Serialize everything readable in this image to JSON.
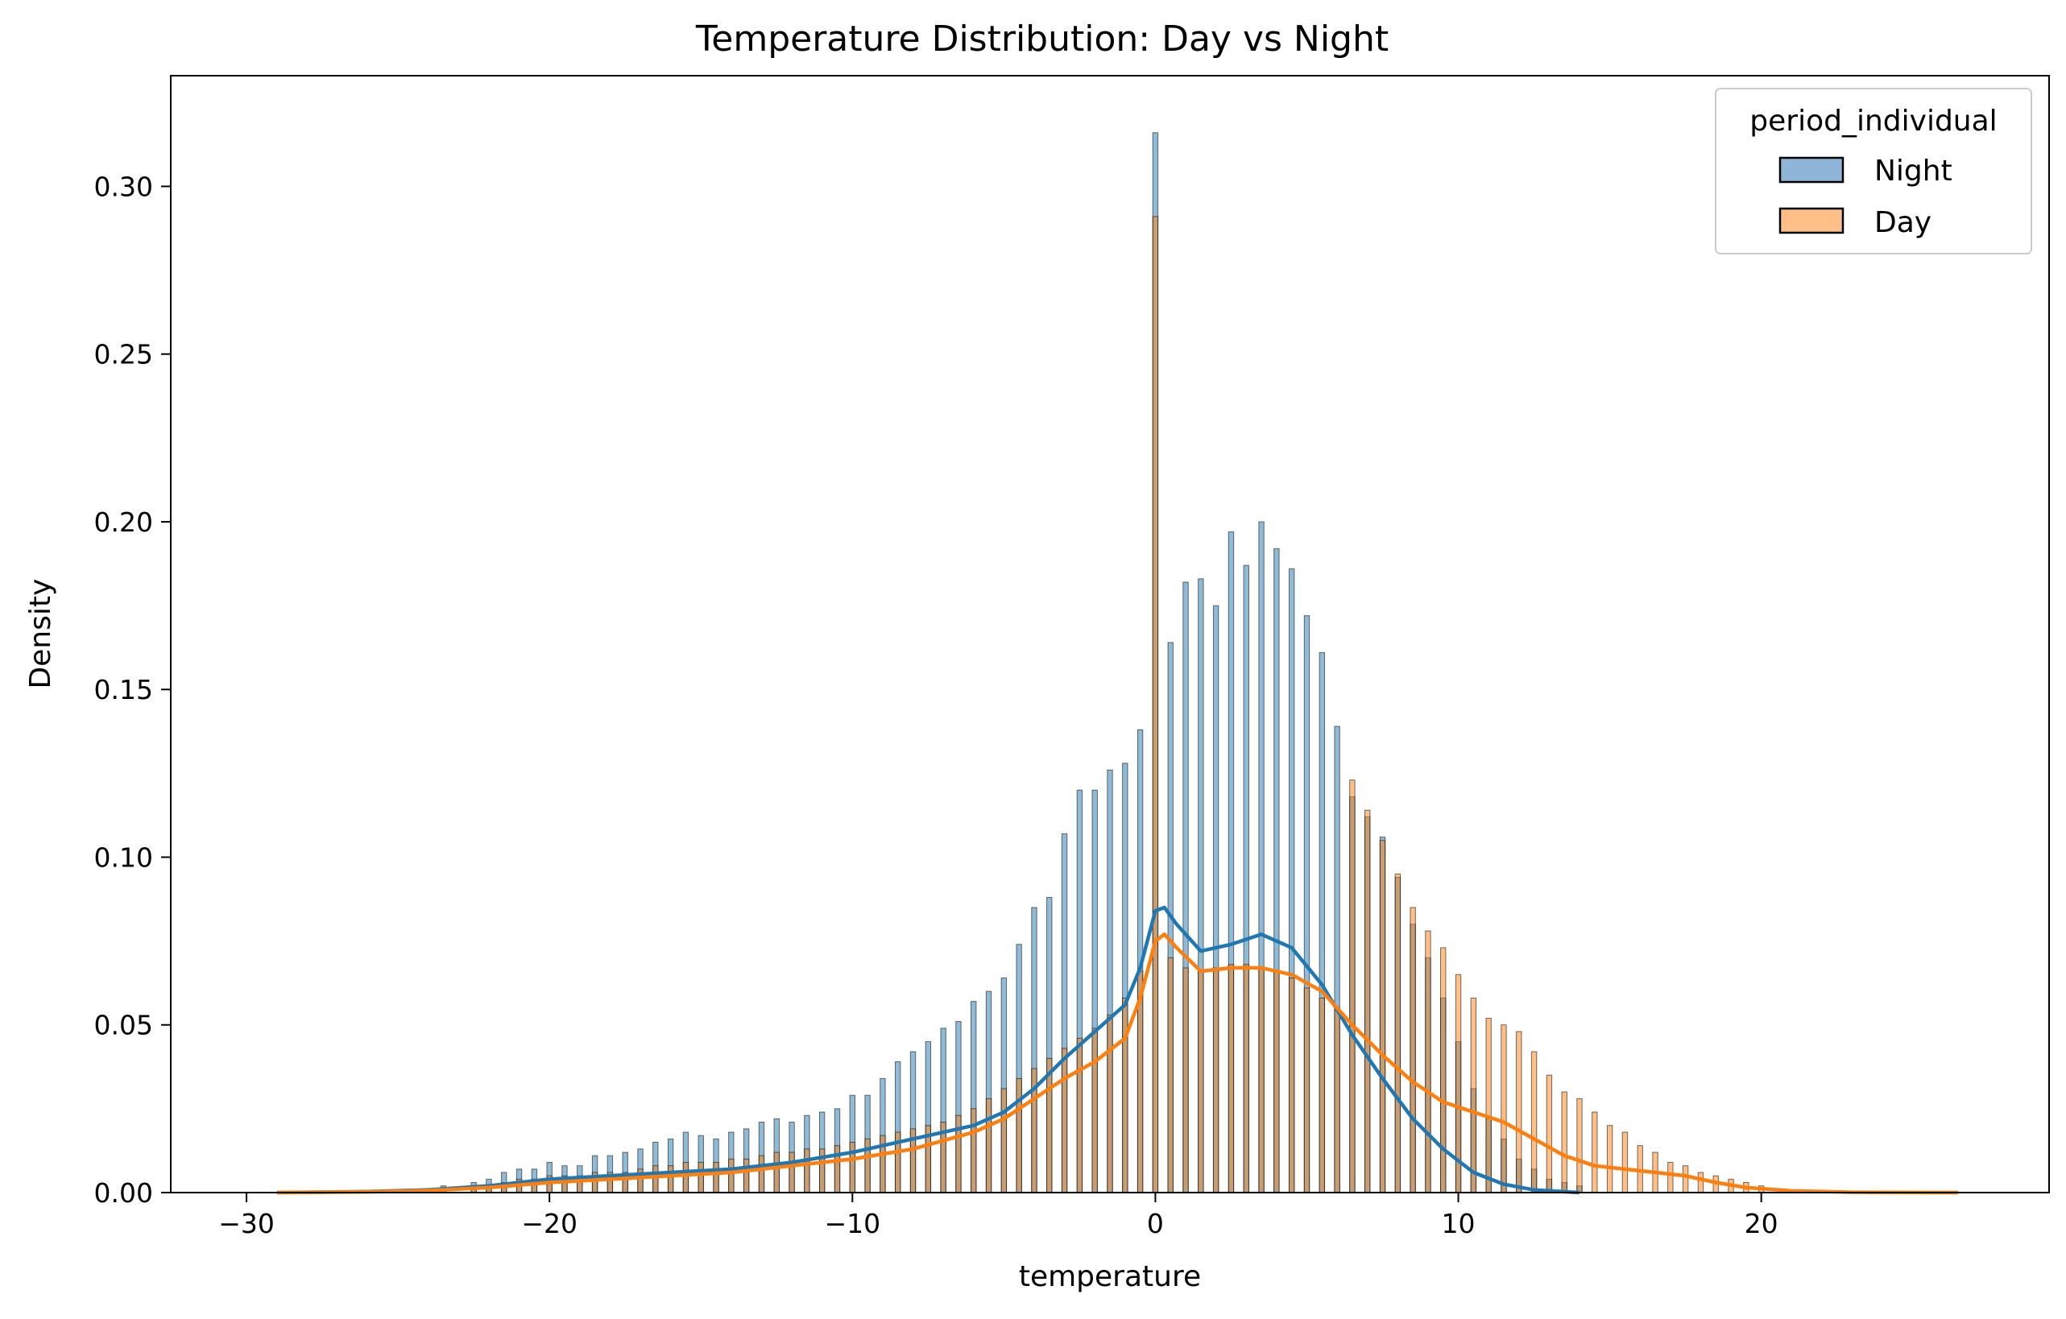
{
  "chart_data": {
    "type": "bar",
    "title": "Temperature Distribution: Day vs Night",
    "xlabel": "temperature",
    "ylabel": "Density",
    "xlim": [
      -32.5,
      29.5
    ],
    "ylim": [
      0,
      0.333
    ],
    "xticks": [
      -30,
      -20,
      -10,
      0,
      10,
      20
    ],
    "xtick_labels": [
      "−30",
      "−20",
      "−10",
      "0",
      "10",
      "20"
    ],
    "yticks": [
      0,
      0.05,
      0.1,
      0.15,
      0.2,
      0.25,
      0.3
    ],
    "ytick_labels": [
      "0.00",
      "0.05",
      "0.10",
      "0.15",
      "0.20",
      "0.25",
      "0.30"
    ],
    "grid": false,
    "legend": {
      "title": "period_individual",
      "position": "top-right",
      "entries": [
        {
          "name": "Night",
          "fill": "#8fb5d8",
          "edge": "#000000"
        },
        {
          "name": "Day",
          "fill": "#ffbf86",
          "edge": "#000000"
        }
      ]
    },
    "bin_width": 0.17,
    "series": [
      {
        "name": "Night",
        "kind": "histogram",
        "color": "#1f77b4",
        "bars": [
          [
            -23.5,
            0.002
          ],
          [
            -22.5,
            0.003
          ],
          [
            -22.0,
            0.004
          ],
          [
            -21.5,
            0.006
          ],
          [
            -21.0,
            0.007
          ],
          [
            -20.5,
            0.007
          ],
          [
            -20.0,
            0.009
          ],
          [
            -19.5,
            0.008
          ],
          [
            -19.0,
            0.008
          ],
          [
            -18.5,
            0.011
          ],
          [
            -18.0,
            0.011
          ],
          [
            -17.5,
            0.012
          ],
          [
            -17.0,
            0.013
          ],
          [
            -16.5,
            0.015
          ],
          [
            -16.0,
            0.016
          ],
          [
            -15.5,
            0.018
          ],
          [
            -15.0,
            0.017
          ],
          [
            -14.5,
            0.016
          ],
          [
            -14.0,
            0.018
          ],
          [
            -13.5,
            0.019
          ],
          [
            -13.0,
            0.021
          ],
          [
            -12.5,
            0.022
          ],
          [
            -12.0,
            0.021
          ],
          [
            -11.5,
            0.023
          ],
          [
            -11.0,
            0.024
          ],
          [
            -10.5,
            0.025
          ],
          [
            -10.0,
            0.029
          ],
          [
            -9.5,
            0.029
          ],
          [
            -9.0,
            0.034
          ],
          [
            -8.5,
            0.039
          ],
          [
            -8.0,
            0.042
          ],
          [
            -7.5,
            0.045
          ],
          [
            -7.0,
            0.049
          ],
          [
            -6.5,
            0.051
          ],
          [
            -6.0,
            0.057
          ],
          [
            -5.5,
            0.06
          ],
          [
            -5.0,
            0.064
          ],
          [
            -4.5,
            0.074
          ],
          [
            -4.0,
            0.085
          ],
          [
            -3.5,
            0.088
          ],
          [
            -3.0,
            0.107
          ],
          [
            -2.5,
            0.12
          ],
          [
            -2.0,
            0.12
          ],
          [
            -1.5,
            0.126
          ],
          [
            -1.0,
            0.128
          ],
          [
            -0.5,
            0.138
          ],
          [
            0.0,
            0.316
          ],
          [
            0.5,
            0.164
          ],
          [
            1.0,
            0.182
          ],
          [
            1.5,
            0.183
          ],
          [
            2.0,
            0.175
          ],
          [
            2.5,
            0.197
          ],
          [
            3.0,
            0.187
          ],
          [
            3.5,
            0.2
          ],
          [
            4.0,
            0.192
          ],
          [
            4.5,
            0.186
          ],
          [
            5.0,
            0.172
          ],
          [
            5.5,
            0.161
          ],
          [
            6.0,
            0.139
          ],
          [
            6.5,
            0.118
          ],
          [
            7.0,
            0.112
          ],
          [
            7.5,
            0.106
          ],
          [
            8.0,
            0.094
          ],
          [
            8.5,
            0.08
          ],
          [
            9.0,
            0.07
          ],
          [
            9.5,
            0.058
          ],
          [
            10.0,
            0.045
          ],
          [
            10.5,
            0.031
          ],
          [
            11.0,
            0.022
          ],
          [
            11.5,
            0.016
          ],
          [
            12.0,
            0.01
          ],
          [
            12.5,
            0.007
          ],
          [
            13.0,
            0.004
          ],
          [
            13.5,
            0.003
          ],
          [
            14.0,
            0.002
          ]
        ],
        "kde": [
          [
            -29.0,
            0.0
          ],
          [
            -26.0,
            0.0003
          ],
          [
            -24.0,
            0.0008
          ],
          [
            -22.0,
            0.002
          ],
          [
            -20.0,
            0.004
          ],
          [
            -18.0,
            0.005
          ],
          [
            -16.0,
            0.006
          ],
          [
            -14.0,
            0.007
          ],
          [
            -12.0,
            0.009
          ],
          [
            -10.0,
            0.012
          ],
          [
            -8.0,
            0.016
          ],
          [
            -6.0,
            0.02
          ],
          [
            -5.0,
            0.024
          ],
          [
            -4.0,
            0.031
          ],
          [
            -3.0,
            0.04
          ],
          [
            -2.0,
            0.048
          ],
          [
            -1.0,
            0.056
          ],
          [
            -0.5,
            0.067
          ],
          [
            0.0,
            0.084
          ],
          [
            0.3,
            0.085
          ],
          [
            0.7,
            0.08
          ],
          [
            1.5,
            0.072
          ],
          [
            2.5,
            0.074
          ],
          [
            3.5,
            0.077
          ],
          [
            4.5,
            0.073
          ],
          [
            5.5,
            0.062
          ],
          [
            6.5,
            0.047
          ],
          [
            7.5,
            0.034
          ],
          [
            8.5,
            0.022
          ],
          [
            9.5,
            0.013
          ],
          [
            10.5,
            0.006
          ],
          [
            11.5,
            0.0025
          ],
          [
            12.5,
            0.0008
          ],
          [
            14.0,
            0.0
          ]
        ]
      },
      {
        "name": "Day",
        "kind": "histogram",
        "color": "#ff7f0e",
        "bars": [
          [
            -23.5,
            0.001
          ],
          [
            -22.5,
            0.002
          ],
          [
            -22.0,
            0.002
          ],
          [
            -21.5,
            0.003
          ],
          [
            -21.0,
            0.004
          ],
          [
            -20.5,
            0.004
          ],
          [
            -20.0,
            0.005
          ],
          [
            -19.5,
            0.005
          ],
          [
            -19.0,
            0.005
          ],
          [
            -18.5,
            0.006
          ],
          [
            -18.0,
            0.006
          ],
          [
            -17.5,
            0.006
          ],
          [
            -17.0,
            0.007
          ],
          [
            -16.5,
            0.008
          ],
          [
            -16.0,
            0.008
          ],
          [
            -15.5,
            0.009
          ],
          [
            -15.0,
            0.009
          ],
          [
            -14.5,
            0.009
          ],
          [
            -14.0,
            0.01
          ],
          [
            -13.5,
            0.01
          ],
          [
            -13.0,
            0.011
          ],
          [
            -12.5,
            0.012
          ],
          [
            -12.0,
            0.012
          ],
          [
            -11.5,
            0.013
          ],
          [
            -11.0,
            0.013
          ],
          [
            -10.5,
            0.014
          ],
          [
            -10.0,
            0.015
          ],
          [
            -9.5,
            0.016
          ],
          [
            -9.0,
            0.017
          ],
          [
            -8.5,
            0.018
          ],
          [
            -8.0,
            0.019
          ],
          [
            -7.5,
            0.02
          ],
          [
            -7.0,
            0.021
          ],
          [
            -6.5,
            0.023
          ],
          [
            -6.0,
            0.025
          ],
          [
            -5.5,
            0.028
          ],
          [
            -5.0,
            0.031
          ],
          [
            -4.5,
            0.034
          ],
          [
            -4.0,
            0.037
          ],
          [
            -3.5,
            0.04
          ],
          [
            -3.0,
            0.043
          ],
          [
            -2.5,
            0.046
          ],
          [
            -2.0,
            0.049
          ],
          [
            -1.5,
            0.053
          ],
          [
            -1.0,
            0.058
          ],
          [
            -0.5,
            0.066
          ],
          [
            0.0,
            0.291
          ],
          [
            0.5,
            0.07
          ],
          [
            1.0,
            0.067
          ],
          [
            1.5,
            0.066
          ],
          [
            2.0,
            0.067
          ],
          [
            2.5,
            0.068
          ],
          [
            3.0,
            0.068
          ],
          [
            3.5,
            0.067
          ],
          [
            4.0,
            0.066
          ],
          [
            4.5,
            0.064
          ],
          [
            5.0,
            0.061
          ],
          [
            5.5,
            0.058
          ],
          [
            6.0,
            0.055
          ],
          [
            6.5,
            0.123
          ],
          [
            7.0,
            0.114
          ],
          [
            7.5,
            0.105
          ],
          [
            8.0,
            0.095
          ],
          [
            8.5,
            0.085
          ],
          [
            9.0,
            0.078
          ],
          [
            9.5,
            0.073
          ],
          [
            10.0,
            0.065
          ],
          [
            10.5,
            0.058
          ],
          [
            11.0,
            0.052
          ],
          [
            11.5,
            0.05
          ],
          [
            12.0,
            0.048
          ],
          [
            12.5,
            0.042
          ],
          [
            13.0,
            0.035
          ],
          [
            13.5,
            0.03
          ],
          [
            14.0,
            0.028
          ],
          [
            14.5,
            0.024
          ],
          [
            15.0,
            0.02
          ],
          [
            15.5,
            0.018
          ],
          [
            16.0,
            0.014
          ],
          [
            16.5,
            0.012
          ],
          [
            17.0,
            0.009
          ],
          [
            17.5,
            0.008
          ],
          [
            18.0,
            0.006
          ],
          [
            18.5,
            0.005
          ],
          [
            19.0,
            0.004
          ],
          [
            19.5,
            0.003
          ],
          [
            20.0,
            0.002
          ]
        ],
        "kde": [
          [
            -29.0,
            0.0
          ],
          [
            -26.0,
            0.0002
          ],
          [
            -24.0,
            0.0006
          ],
          [
            -22.0,
            0.0015
          ],
          [
            -20.0,
            0.003
          ],
          [
            -18.0,
            0.004
          ],
          [
            -16.0,
            0.005
          ],
          [
            -14.0,
            0.006
          ],
          [
            -12.0,
            0.008
          ],
          [
            -10.0,
            0.01
          ],
          [
            -8.0,
            0.013
          ],
          [
            -6.0,
            0.018
          ],
          [
            -5.0,
            0.022
          ],
          [
            -4.0,
            0.028
          ],
          [
            -3.0,
            0.034
          ],
          [
            -2.0,
            0.039
          ],
          [
            -1.0,
            0.046
          ],
          [
            -0.5,
            0.058
          ],
          [
            0.0,
            0.075
          ],
          [
            0.3,
            0.077
          ],
          [
            0.7,
            0.073
          ],
          [
            1.5,
            0.066
          ],
          [
            2.5,
            0.067
          ],
          [
            3.5,
            0.067
          ],
          [
            4.5,
            0.065
          ],
          [
            5.5,
            0.06
          ],
          [
            6.5,
            0.05
          ],
          [
            7.5,
            0.041
          ],
          [
            8.5,
            0.033
          ],
          [
            9.5,
            0.027
          ],
          [
            10.5,
            0.024
          ],
          [
            11.5,
            0.021
          ],
          [
            12.5,
            0.016
          ],
          [
            13.5,
            0.011
          ],
          [
            14.5,
            0.008
          ],
          [
            15.5,
            0.007
          ],
          [
            16.5,
            0.006
          ],
          [
            17.5,
            0.005
          ],
          [
            18.5,
            0.003
          ],
          [
            19.5,
            0.0015
          ],
          [
            21.0,
            0.0005
          ],
          [
            23.0,
            0.0001
          ],
          [
            26.5,
            0.0
          ]
        ]
      }
    ]
  }
}
